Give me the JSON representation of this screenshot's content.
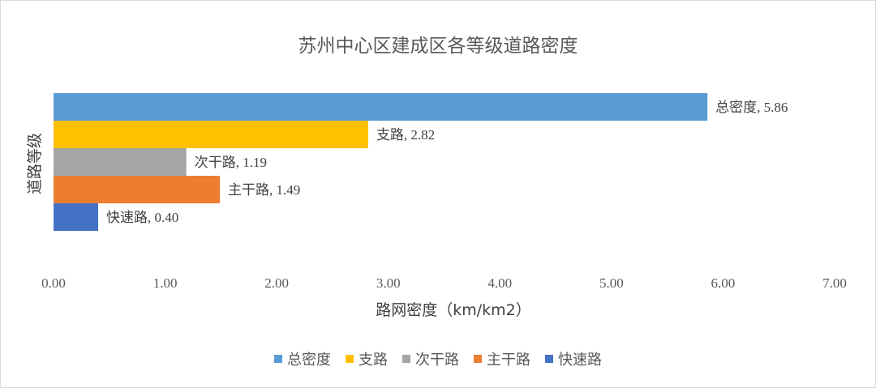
{
  "chart_data": {
    "type": "bar",
    "orientation": "horizontal",
    "title": "苏州中心区建成区各等级道路密度",
    "xlabel": "路网密度（km/km2）",
    "ylabel": "道路等级",
    "xlim": [
      0,
      7
    ],
    "xticks": [
      "0.00",
      "1.00",
      "2.00",
      "3.00",
      "4.00",
      "5.00",
      "6.00",
      "7.00"
    ],
    "grid": false,
    "legend_position": "bottom",
    "series": [
      {
        "name": "总密度",
        "value": 5.86,
        "label": "总密度, 5.86",
        "color": "#5B9BD5"
      },
      {
        "name": "支路",
        "value": 2.82,
        "label": "支路, 2.82",
        "color": "#FFC000"
      },
      {
        "name": "次干路",
        "value": 1.19,
        "label": "次干路, 1.19",
        "color": "#A5A5A5"
      },
      {
        "name": "主干路",
        "value": 1.49,
        "label": "主干路, 1.49",
        "color": "#ED7D31"
      },
      {
        "name": "快速路",
        "value": 0.4,
        "label": "快速路, 0.40",
        "color": "#4472C4"
      }
    ]
  }
}
